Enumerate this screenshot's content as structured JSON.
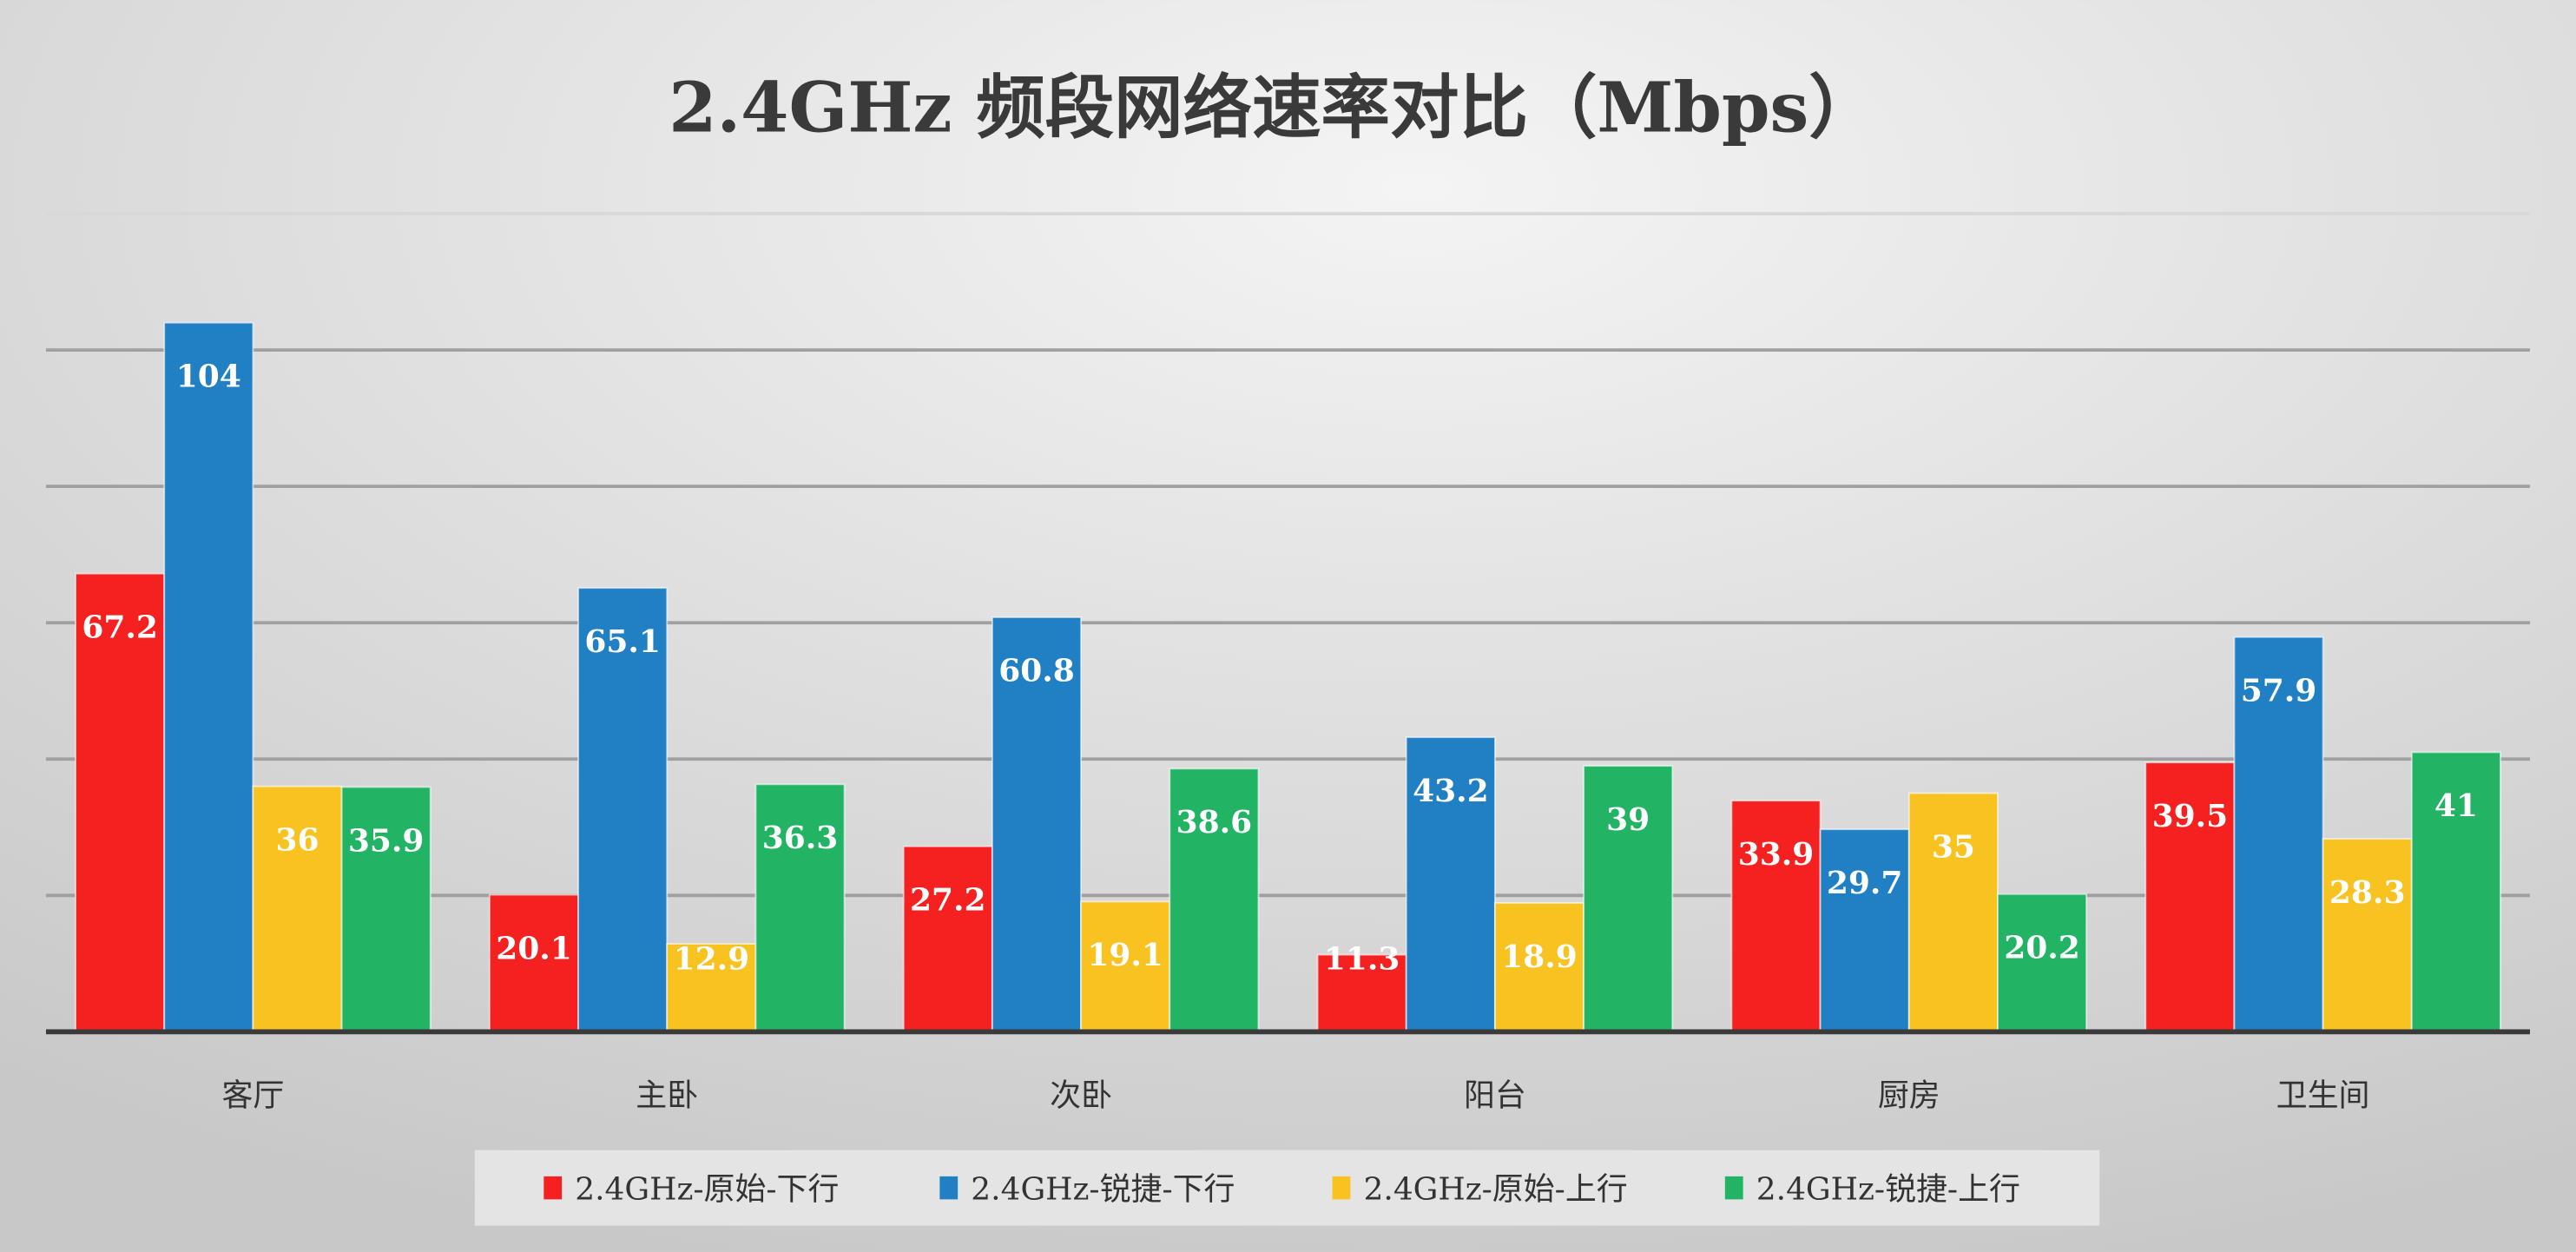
{
  "chart_data": {
    "type": "bar",
    "title": "2.4GHz 频段网络速率对比（Mbps）",
    "xlabel": "",
    "ylabel": "",
    "ylim": [
      0,
      120
    ],
    "grid": true,
    "gridline_step": 20,
    "y_tick_labels_shown": false,
    "legend_position": "bottom",
    "categories": [
      "客厅",
      "主卧",
      "次卧",
      "阳台",
      "厨房",
      "卫生间"
    ],
    "series": [
      {
        "name": "2.4GHz-原始-下行",
        "color": "#f52020",
        "values": [
          67.2,
          20.1,
          27.2,
          11.3,
          33.9,
          39.5
        ]
      },
      {
        "name": "2.4GHz-锐捷-下行",
        "color": "#2180c4",
        "values": [
          104,
          65.1,
          60.8,
          43.2,
          29.7,
          57.9
        ]
      },
      {
        "name": "2.4GHz-原始-上行",
        "color": "#f8c220",
        "values": [
          36,
          12.9,
          19.1,
          18.9,
          35,
          28.3
        ]
      },
      {
        "name": "2.4GHz-锐捷-上行",
        "color": "#22b464",
        "values": [
          35.9,
          36.3,
          38.6,
          39,
          20.2,
          41
        ]
      }
    ]
  }
}
